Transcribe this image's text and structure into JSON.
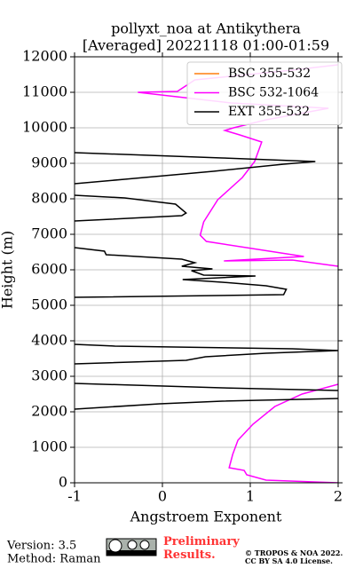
{
  "chart_data": {
    "type": "line",
    "title": "pollyxt_noa at Antikythera",
    "subtitle": "[Averaged] 20221118 01:00-01:59",
    "xlabel": "Angstroem Exponent",
    "ylabel": "Height (m)",
    "xlim": [
      -1,
      2
    ],
    "xticks": [
      -1,
      0,
      1,
      2
    ],
    "ylim": [
      0,
      12000
    ],
    "yticks": [
      0,
      1000,
      2000,
      3000,
      4000,
      5000,
      6000,
      7000,
      8000,
      9000,
      10000,
      11000,
      12000
    ],
    "grid": true,
    "legend": "upper right",
    "series": [
      {
        "name": "BSC 355-532",
        "color": "#ff7f0e",
        "x": [],
        "y": []
      },
      {
        "name": "BSC 532-1064",
        "color": "#ff00ff",
        "x": [
          2.0,
          1.18,
          0.96,
          0.93,
          0.76,
          0.8,
          0.86,
          1.03,
          1.28,
          1.59,
          2.0,
          null,
          2.0,
          1.48,
          0.7,
          1.61,
          0.5,
          0.43,
          0.47,
          0.63,
          0.91,
          1.05,
          1.13,
          0.88,
          0.71,
          0.81,
          1.18,
          1.89,
          0.78,
          -0.28,
          0.17,
          0.37,
          1.48,
          2.0
        ],
        "y": [
          0,
          75,
          225,
          350,
          425,
          800,
          1200,
          1650,
          2150,
          2500,
          2775,
          null,
          6100,
          6275,
          6250,
          6375,
          6800,
          6975,
          7350,
          7975,
          8600,
          9050,
          9600,
          9800,
          9925,
          10000,
          10225,
          10550,
          10700,
          11000,
          11025,
          11350,
          11625,
          11775
        ]
      },
      {
        "name": "EXT 355-532",
        "color": "#000000",
        "x": [
          -1,
          -0.03,
          0.68,
          2.0,
          null,
          -1,
          0.68,
          2.0,
          null,
          -1,
          0.27,
          0.49,
          1.18,
          2.0,
          1.48,
          -0.54,
          -1,
          null,
          -1,
          1.38,
          1.41,
          1.18,
          0.68,
          0.23,
          1.06,
          0.47,
          0.33,
          0.57,
          0.22,
          0.37,
          0.22,
          -0.64,
          -0.66,
          -1,
          null,
          -1,
          0.22,
          0.27,
          0.15,
          -0.43,
          -1,
          null,
          -1,
          -0.43,
          0.58,
          1.38,
          1.74,
          0.68,
          -1
        ],
        "y": [
          2075,
          2225,
          2300,
          2375,
          null,
          2800,
          2675,
          2600,
          null,
          3350,
          3450,
          3550,
          3650,
          3725,
          3775,
          3850,
          3900,
          null,
          5225,
          5300,
          5450,
          5550,
          5650,
          5725,
          5825,
          5850,
          5975,
          6025,
          6100,
          6200,
          6300,
          6425,
          6525,
          6625,
          null,
          7375,
          7525,
          7600,
          7850,
          8025,
          8100,
          null,
          8425,
          8550,
          8775,
          8975,
          9050,
          9150,
          9300
        ]
      }
    ]
  },
  "footer": {
    "version": "Version: 3.5",
    "method": "Method: Raman",
    "status": "Preliminary\nResults.",
    "copyright": "© TROPOS & NOA 2022.",
    "license": "CC BY SA 4.0 License."
  }
}
